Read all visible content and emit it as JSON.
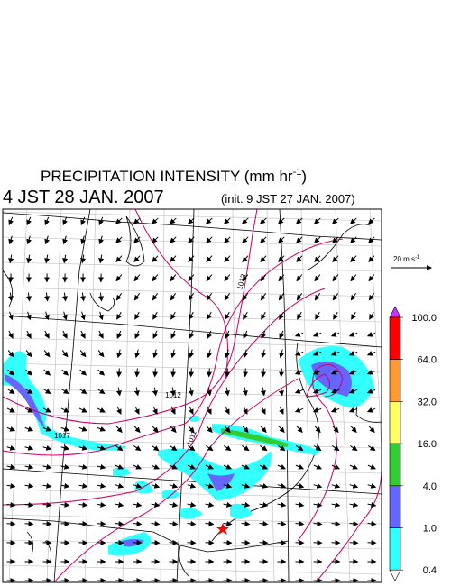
{
  "header": {
    "title": {
      "text": "PRECIPITATION INTENSITY (mm hr",
      "exponent": "-1",
      "close": ")"
    },
    "valid_time": "4 JST 28 JAN. 2007",
    "init_time": "(init. 9 JST 27 JAN. 2007)"
  },
  "wind_scale": {
    "text": "20 m s",
    "exponent": "-1"
  },
  "colorbar": {
    "levels": [
      {
        "value": 100,
        "label": "100.0"
      },
      {
        "value": 64,
        "label": "64.0"
      },
      {
        "value": 32,
        "label": "32.0"
      },
      {
        "value": 16,
        "label": "16.0"
      },
      {
        "value": 4,
        "label": "4.0"
      },
      {
        "value": 1,
        "label": "1.0"
      },
      {
        "value": 0.4,
        "label": "0.4"
      }
    ],
    "colors": [
      "#ff0000",
      "#ff9933",
      "#ffff66",
      "#33cc33",
      "#6666ff",
      "#33ffff"
    ],
    "over_color": "#cc33ff",
    "under_color": "#ffffff"
  },
  "contour_labels": [
    "1013",
    "1012",
    "1011",
    "1017"
  ]
}
